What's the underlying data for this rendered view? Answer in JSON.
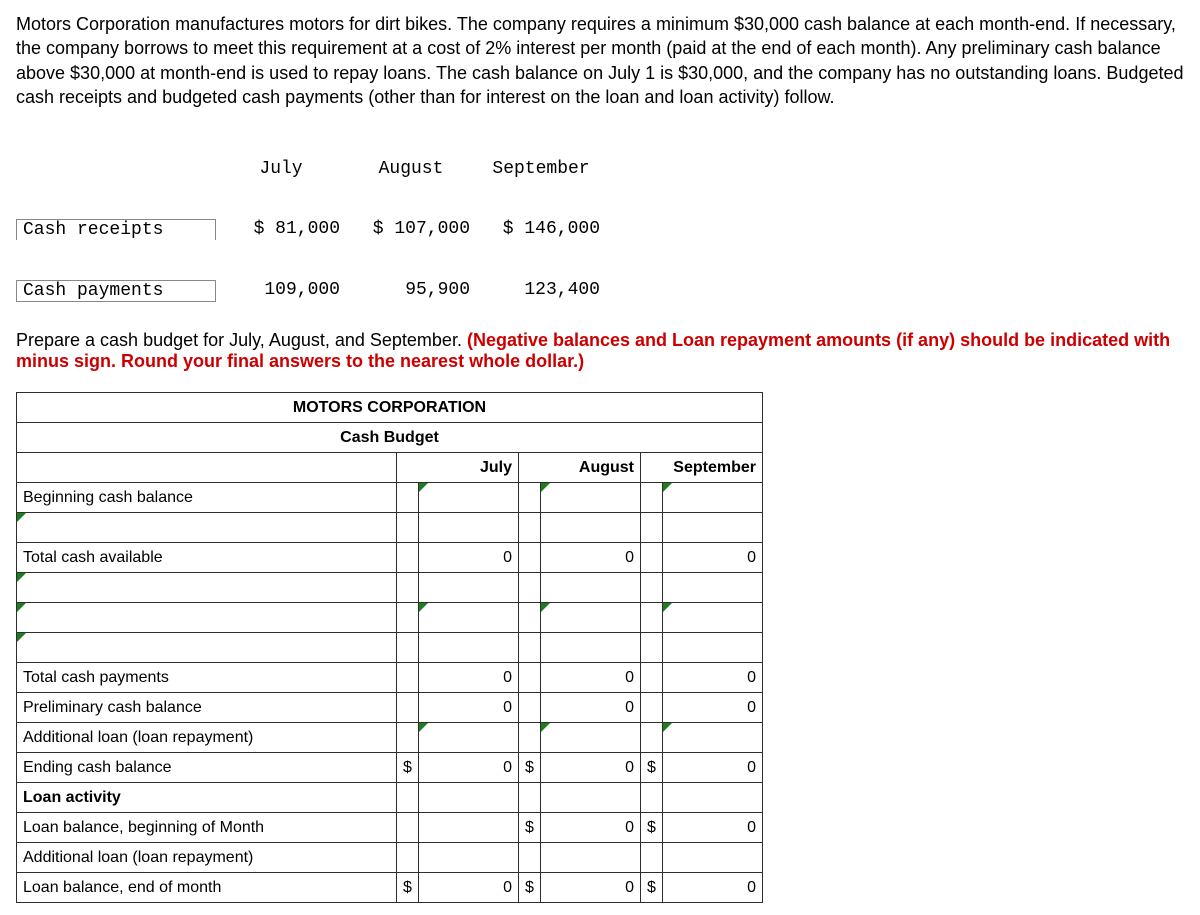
{
  "prose": "Motors Corporation manufactures motors for dirt bikes. The company requires a minimum $30,000 cash balance at each month-end. If necessary, the company borrows to meet this requirement at a cost of 2% interest per month (paid at the end of each month). Any preliminary cash balance above $30,000 at month-end is used to repay loans. The cash balance on July 1 is $30,000, and the company has no outstanding loans. Budgeted cash receipts and budgeted cash payments (other than for interest on the loan and loan activity) follow.",
  "given": {
    "headers": {
      "c1": "July",
      "c2": "August",
      "c3": "September"
    },
    "rows": [
      {
        "label": "Cash receipts",
        "c1": "$ 81,000",
        "c2": "$ 107,000",
        "c3": "$ 146,000"
      },
      {
        "label": "Cash payments",
        "c1": "109,000",
        "c2": "95,900",
        "c3": "123,400"
      }
    ]
  },
  "instruction_plain": "Prepare a cash budget for July, August, and September. ",
  "instruction_red": "(Negative balances and Loan repayment amounts (if any) should be indicated with minus sign. Round your final answers to the nearest whole dollar.)",
  "worksheet": {
    "title1": "MOTORS CORPORATION",
    "title2": "Cash Budget",
    "col_headers": {
      "jul": "July",
      "aug": "August",
      "sep": "September"
    },
    "rows": {
      "r1": "Beginning cash balance",
      "r3": "Total cash available",
      "r7": "Total cash payments",
      "r8": "Preliminary cash balance",
      "r9": "Additional loan (loan repayment)",
      "r10": "Ending cash balance",
      "r11": "Loan activity",
      "r12": "Loan balance, beginning of Month",
      "r13": "Additional loan (loan repayment)",
      "r14": "Loan balance, end of month"
    },
    "vals": {
      "zero": "0",
      "dollar": "$"
    }
  }
}
